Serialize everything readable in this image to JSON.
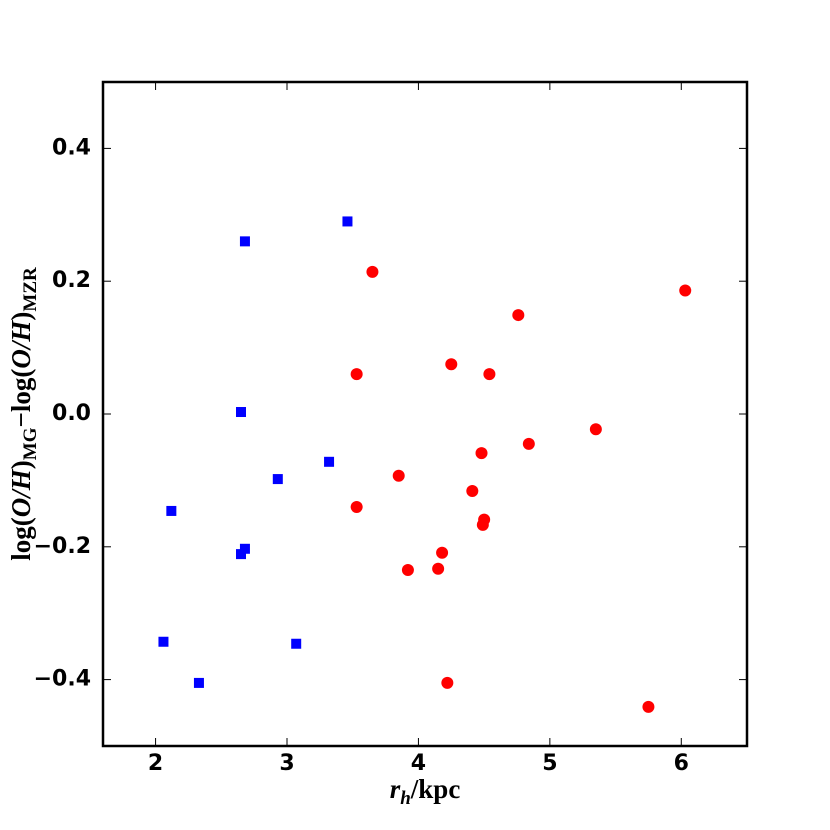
{
  "chart_data": {
    "type": "scatter",
    "xlabel": [
      "r",
      "h",
      "/kpc"
    ],
    "ylabel": [
      "log(",
      "O/H",
      ")",
      "MG",
      "−log(",
      "O/H",
      ")",
      "MZR"
    ],
    "xlim": [
      1.6,
      6.5
    ],
    "xticks": [
      2,
      3,
      4,
      5,
      6
    ],
    "ylim": [
      -0.5,
      0.5
    ],
    "yticks": [
      {
        "value": -0.4,
        "label": "−0.4"
      },
      {
        "value": -0.2,
        "label": "−0.2"
      },
      {
        "value": 0,
        "label": "0.0"
      },
      0.2,
      0.4
    ],
    "series": [
      {
        "color": "#0000ff",
        "marker": "square",
        "x": [
          2.68,
          3.46,
          2.65,
          3.32,
          2.93,
          2.12,
          2.68,
          2.65,
          2.06,
          3.07,
          2.33
        ],
        "values": [
          0.26,
          0.29,
          0.003,
          -0.072,
          -0.098,
          -0.146,
          -0.203,
          -0.211,
          -0.343,
          -0.346,
          -0.405
        ]
      },
      {
        "color": "#ff0000",
        "marker": "circle",
        "x": [
          3.65,
          6.03,
          4.76,
          3.53,
          4.25,
          4.54,
          5.35,
          4.84,
          4.48,
          3.85,
          4.41,
          3.53,
          4.5,
          4.49,
          4.18,
          4.15,
          3.92,
          4.22,
          5.75
        ],
        "values": [
          0.214,
          0.186,
          0.149,
          0.06,
          0.075,
          0.06,
          -0.023,
          -0.045,
          -0.059,
          -0.093,
          -0.116,
          -0.14,
          -0.159,
          -0.167,
          -0.209,
          -0.233,
          -0.235,
          -0.405,
          -0.441
        ]
      }
    ]
  }
}
